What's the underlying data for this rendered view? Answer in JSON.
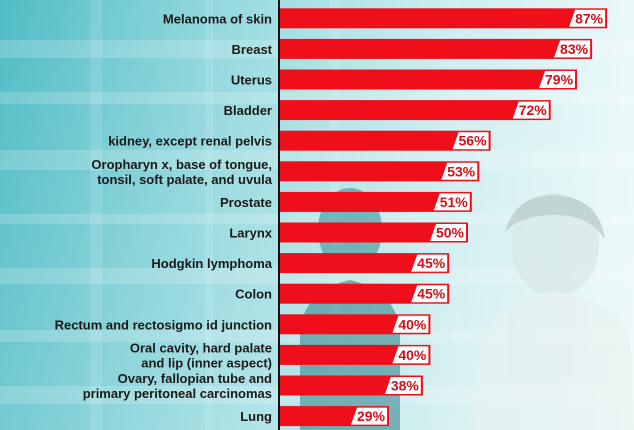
{
  "chart_data": {
    "type": "bar",
    "orientation": "horizontal",
    "categories": [
      [
        "Melanoma of skin"
      ],
      [
        "Breast"
      ],
      [
        "Uterus"
      ],
      [
        "Bladder"
      ],
      [
        "kidney, except renal pelvis"
      ],
      [
        "Oropharyn x, base of tongue,",
        "tonsil, soft palate, and uvula"
      ],
      [
        "Prostate"
      ],
      [
        "Larynx"
      ],
      [
        "Hodgkin lymphoma"
      ],
      [
        "Colon"
      ],
      [
        "Rectum and rectosigmo id junction"
      ],
      [
        "Oral cavity, hard palate",
        "and lip (inner aspect)"
      ],
      [
        "Ovary, fallopian tube and",
        "primary peritoneal carcinomas"
      ],
      [
        "Lung"
      ]
    ],
    "values": [
      87,
      83,
      79,
      72,
      56,
      53,
      51,
      50,
      45,
      45,
      40,
      40,
      38,
      29
    ],
    "value_labels": [
      "87%",
      "83%",
      "79%",
      "72%",
      "56%",
      "53%",
      "51%",
      "50%",
      "45%",
      "45%",
      "40%",
      "40%",
      "38%",
      "29%"
    ],
    "value_unit": "%",
    "xlim": [
      0,
      100
    ],
    "bar_color": "#ee0f1a",
    "label_color": "#d0111b",
    "axis_color": "#111111",
    "background_color": "#7fd0d6",
    "grid": false,
    "legend": "none"
  }
}
